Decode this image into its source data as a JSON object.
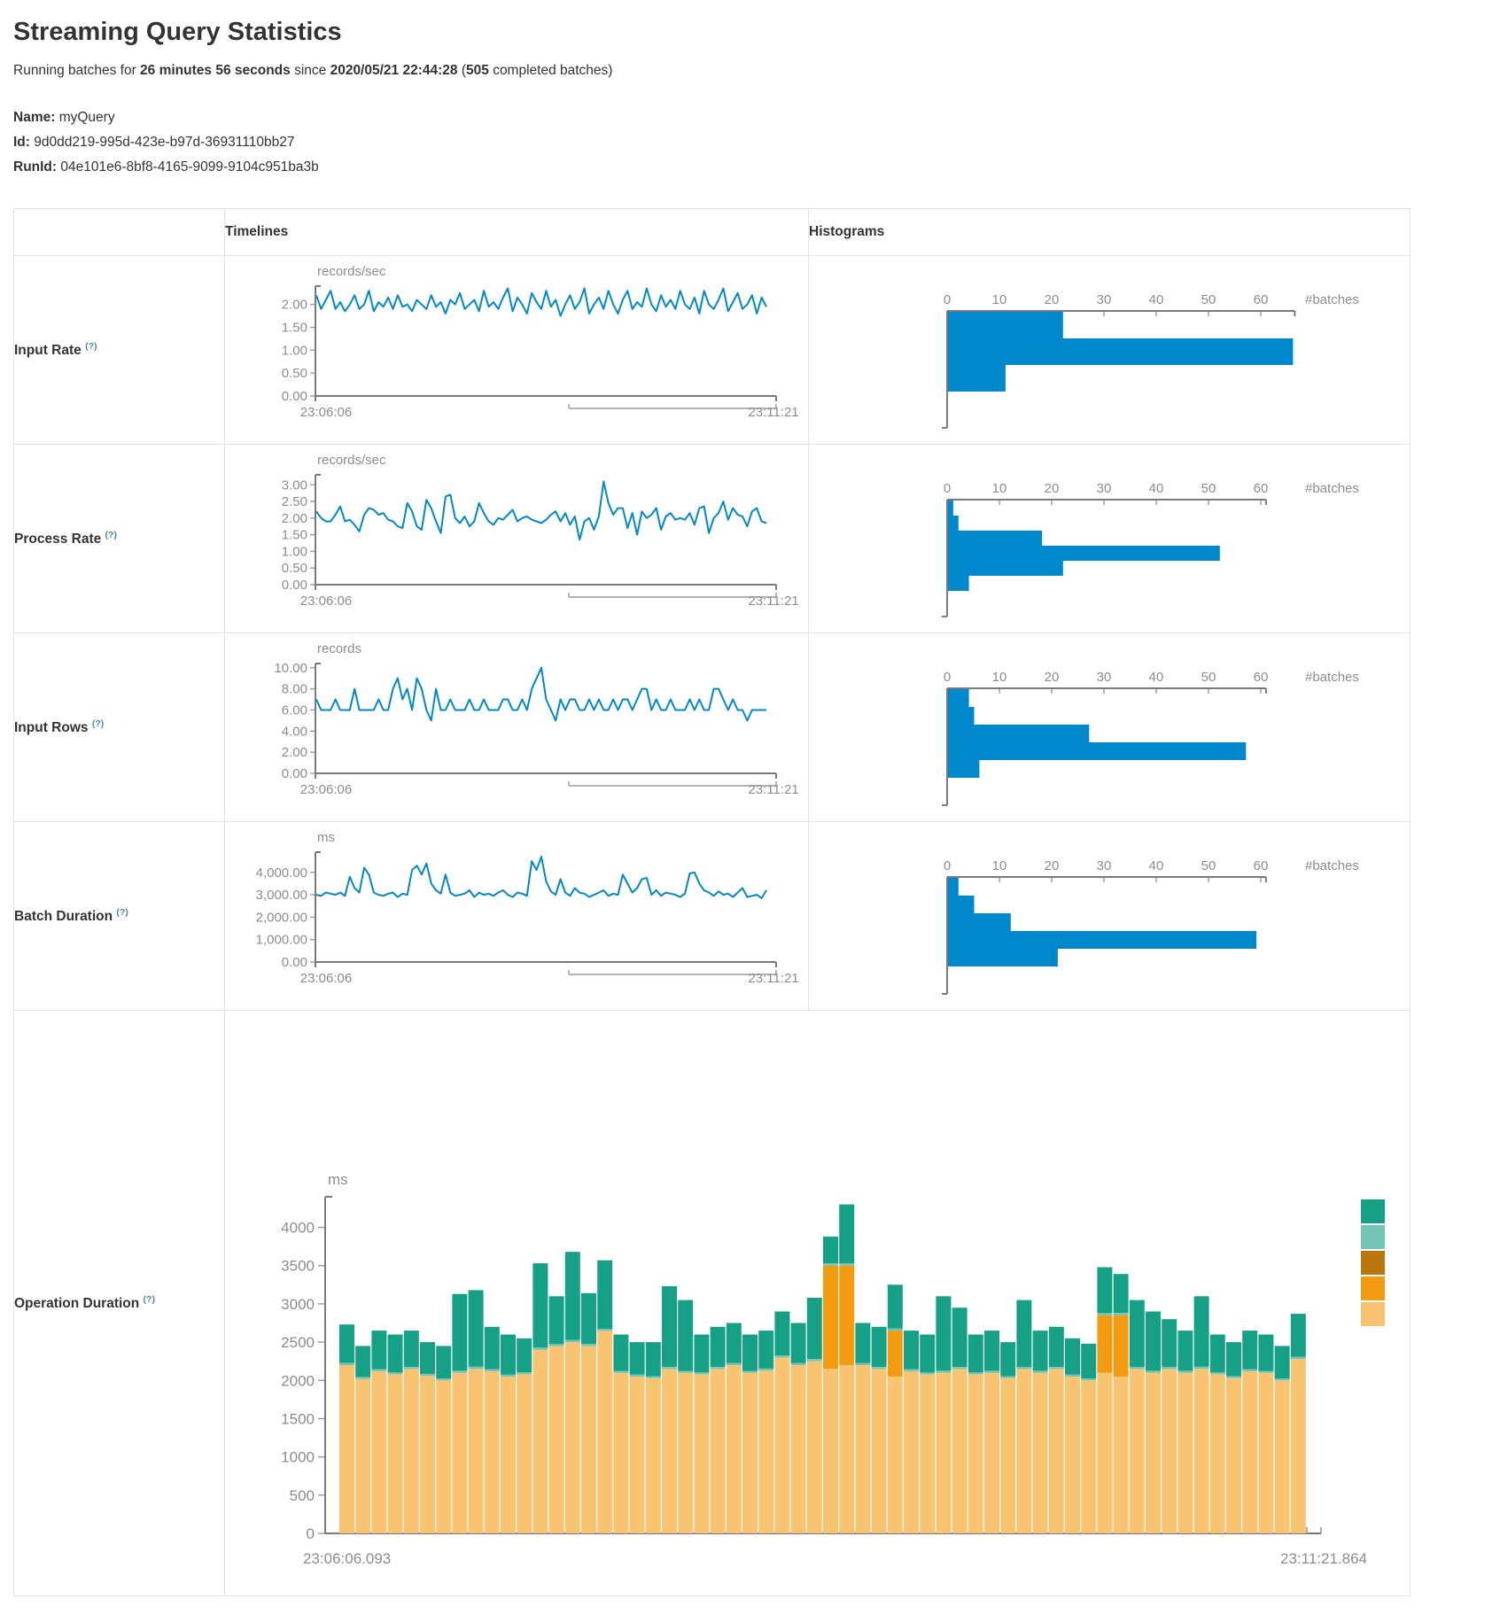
{
  "page": {
    "title": "Streaming Query Statistics"
  },
  "status_line": {
    "prefix": "Running batches for",
    "duration": "26 minutes 56 seconds",
    "middle": "since",
    "start_time": "2020/05/21 22:44:28",
    "paren_open": "(",
    "batch_count": "505",
    "suffix": "completed batches)"
  },
  "meta": {
    "name_label": "Name:",
    "name": "myQuery",
    "id_label": "Id:",
    "id": "9d0dd219-995d-423e-b97d-36931110bb27",
    "runid_label": "RunId:",
    "runid": "04e101e6-8bf8-4165-9099-9104c951ba3b"
  },
  "table": {
    "timelines_header": "Timelines",
    "histograms_header": "Histograms",
    "help_marker": "(?)",
    "rows": [
      {
        "label": "Input Rate"
      },
      {
        "label": "Process Rate"
      },
      {
        "label": "Input Rows"
      },
      {
        "label": "Batch Duration"
      },
      {
        "label": "Operation Duration"
      }
    ]
  },
  "colors": {
    "line_blue": "#0088cc",
    "bar_blue": "#0088cc",
    "axis": "#7a7a7a",
    "tick_text": "#8c8c8c",
    "legend": [
      "#16A085",
      "#73C6B6",
      "#B9770E",
      "#F39C12",
      "#F8C471"
    ]
  },
  "chart_data": [
    {
      "id": "input-rate-timeline",
      "type": "line",
      "title": "Input Rate",
      "unit": "records/sec",
      "x_start": "23:06:06",
      "x_end": "23:11:21",
      "ymax": 2.4,
      "yticks": [
        0,
        0.5,
        1,
        1.5,
        2
      ],
      "ytick_labels": [
        "0.00",
        "0.50",
        "1.00",
        "1.50",
        "2.00"
      ],
      "values": [
        2.2,
        1.9,
        2.1,
        2.3,
        1.9,
        2.05,
        1.85,
        2.0,
        2.2,
        1.9,
        2.0,
        2.3,
        1.85,
        2.05,
        1.95,
        2.15,
        1.9,
        2.2,
        1.95,
        2.0,
        1.85,
        2.1,
        2.0,
        1.9,
        2.2,
        1.95,
        2.05,
        1.8,
        2.1,
        2.0,
        2.25,
        1.9,
        2.0,
        2.1,
        1.85,
        2.3,
        1.95,
        2.05,
        1.9,
        2.15,
        2.35,
        1.85,
        2.15,
        2.0,
        1.8,
        2.25,
        2.05,
        1.9,
        2.3,
        1.95,
        2.1,
        1.75,
        2.0,
        2.2,
        1.9,
        2.05,
        2.35,
        1.8,
        2.0,
        2.15,
        1.9,
        2.3,
        2.0,
        1.8,
        2.1,
        2.3,
        1.9,
        2.05,
        1.95,
        2.35,
        2.0,
        1.85,
        2.2,
        1.95,
        2.1,
        1.9,
        2.3,
        2.0,
        1.9,
        2.15,
        1.8,
        2.3,
        2.0,
        1.9,
        2.1,
        2.35,
        1.85,
        2.05,
        2.25,
        1.9,
        2.0,
        2.2,
        1.8,
        2.15,
        1.95
      ]
    },
    {
      "id": "input-rate-histogram",
      "type": "bar",
      "title": "Input Rate histogram",
      "orientation": "horizontal",
      "xlabel": "#batches",
      "xticks": [
        0,
        10,
        20,
        30,
        40,
        50,
        60
      ],
      "bars": [
        22,
        66,
        11
      ],
      "axis_max": 66.5
    },
    {
      "id": "process-rate-timeline",
      "type": "line",
      "title": "Process Rate",
      "unit": "records/sec",
      "x_start": "23:06:06",
      "x_end": "23:11:21",
      "ymax": 3.3,
      "yticks": [
        0,
        0.5,
        1,
        1.5,
        2,
        2.5,
        3
      ],
      "ytick_labels": [
        "0.00",
        "0.50",
        "1.00",
        "1.50",
        "2.00",
        "2.50",
        "3.00"
      ],
      "values": [
        2.2,
        2.0,
        1.9,
        1.9,
        2.1,
        2.35,
        1.9,
        1.95,
        1.8,
        1.6,
        2.1,
        2.3,
        2.25,
        2.1,
        2.15,
        1.95,
        1.9,
        1.75,
        1.7,
        2.45,
        2.2,
        1.75,
        1.65,
        2.55,
        2.3,
        1.9,
        1.55,
        2.65,
        2.7,
        2.0,
        1.85,
        2.05,
        1.75,
        1.9,
        2.45,
        2.15,
        1.9,
        1.8,
        2.0,
        1.95,
        2.1,
        2.25,
        1.9,
        2.0,
        2.05,
        1.95,
        1.9,
        1.85,
        1.95,
        2.1,
        2.2,
        1.9,
        2.15,
        1.8,
        2.05,
        1.35,
        1.9,
        2.0,
        1.65,
        2.05,
        3.1,
        2.45,
        2.1,
        2.3,
        2.3,
        1.7,
        2.15,
        1.5,
        2.2,
        2.0,
        2.1,
        2.3,
        1.65,
        2.05,
        2.15,
        1.95,
        2.0,
        1.95,
        2.15,
        1.8,
        2.3,
        2.35,
        1.55,
        2.0,
        2.15,
        2.5,
        1.95,
        2.3,
        2.1,
        2.05,
        1.75,
        2.2,
        2.3,
        1.9,
        1.85
      ]
    },
    {
      "id": "process-rate-histogram",
      "type": "bar",
      "title": "Process Rate histogram",
      "orientation": "horizontal",
      "xlabel": "#batches",
      "xticks": [
        0,
        10,
        20,
        30,
        40,
        50,
        60
      ],
      "bars": [
        1,
        2,
        18,
        52,
        22,
        4
      ],
      "axis_max": 61
    },
    {
      "id": "input-rows-timeline",
      "type": "line",
      "title": "Input Rows",
      "unit": "records",
      "x_start": "23:06:06",
      "x_end": "23:11:21",
      "ymax": 10.4,
      "yticks": [
        0,
        2,
        4,
        6,
        8,
        10
      ],
      "ytick_labels": [
        "0.00",
        "2.00",
        "4.00",
        "6.00",
        "8.00",
        "10.00"
      ],
      "values": [
        7,
        6,
        6,
        6,
        7,
        6,
        6,
        6,
        8,
        6,
        6,
        6,
        6,
        7,
        6,
        6,
        8,
        9,
        7,
        8,
        6,
        9,
        8,
        6,
        5,
        8,
        6,
        6,
        7,
        6,
        6,
        6,
        7,
        6,
        6,
        7,
        6,
        6,
        6,
        7,
        7,
        6,
        6,
        7,
        6,
        8,
        9,
        10,
        7,
        6,
        5,
        7,
        6,
        7,
        7,
        6,
        6,
        7,
        6,
        7,
        6,
        6,
        7,
        6,
        7,
        7,
        6,
        7,
        8,
        8,
        6,
        7,
        6,
        6,
        7,
        6,
        6,
        6,
        7,
        6,
        7,
        6,
        6,
        8,
        8,
        7,
        6,
        7,
        6,
        6,
        5,
        6,
        6,
        6,
        6
      ]
    },
    {
      "id": "input-rows-histogram",
      "type": "bar",
      "title": "Input Rows histogram",
      "orientation": "horizontal",
      "xlabel": "#batches",
      "xticks": [
        0,
        10,
        20,
        30,
        40,
        50,
        60
      ],
      "bars": [
        4,
        5,
        27,
        57,
        6
      ],
      "axis_max": 61
    },
    {
      "id": "batch-duration-timeline",
      "type": "line",
      "title": "Batch Duration",
      "unit": "ms",
      "x_start": "23:06:06",
      "x_end": "23:11:21",
      "ymax": 4900,
      "yticks": [
        0,
        1000,
        2000,
        3000,
        4000
      ],
      "ytick_labels": [
        "0.00",
        "1,000.00",
        "2,000.00",
        "3,000.00",
        "4,000.00"
      ],
      "values": [
        3000,
        2950,
        3100,
        3050,
        3000,
        3100,
        2950,
        3800,
        3300,
        3100,
        4200,
        3900,
        3100,
        3000,
        2950,
        3050,
        3100,
        2900,
        3050,
        3000,
        4100,
        4300,
        3900,
        4400,
        3500,
        3200,
        3050,
        3900,
        3100,
        2950,
        3000,
        3050,
        3200,
        2900,
        3100,
        3000,
        3050,
        2950,
        3100,
        3200,
        3000,
        2900,
        3100,
        3050,
        2950,
        4500,
        4100,
        4700,
        3600,
        3150,
        3000,
        3700,
        3100,
        2950,
        3300,
        3100,
        3050,
        2900,
        3000,
        3100,
        3200,
        2950,
        3050,
        3000,
        3900,
        3500,
        3100,
        3300,
        3700,
        3750,
        3000,
        3200,
        2950,
        3100,
        3050,
        3000,
        2900,
        3050,
        3950,
        4000,
        3500,
        3200,
        3100,
        2950,
        3150,
        3000,
        3050,
        2900,
        3100,
        3300,
        2900,
        2950,
        3000,
        2850,
        3200
      ]
    },
    {
      "id": "batch-duration-histogram",
      "type": "bar",
      "title": "Batch Duration histogram",
      "orientation": "horizontal",
      "xlabel": "#batches",
      "xticks": [
        0,
        10,
        20,
        30,
        40,
        50,
        60
      ],
      "bars": [
        2,
        5,
        12,
        59,
        21
      ],
      "axis_max": 61
    },
    {
      "id": "operation-duration",
      "type": "stacked-bar",
      "title": "Operation Duration",
      "unit": "ms",
      "x_start": "23:06:06.093",
      "x_end": "23:11:21.864",
      "ymax": 4400,
      "yticks": [
        0,
        500,
        1000,
        1500,
        2000,
        2500,
        3000,
        3500,
        4000
      ],
      "ytick_labels": [
        "0",
        "500",
        "1000",
        "1500",
        "2000",
        "2500",
        "3000",
        "3500",
        "4000"
      ],
      "segment_colors": [
        "#F8C471",
        "#F39C12",
        "#B9770E",
        "#73C6B6",
        "#16A085"
      ],
      "legend_colors": [
        "#16A085",
        "#73C6B6",
        "#B9770E",
        "#F39C12",
        "#F8C471"
      ],
      "bars": [
        [
          2200,
          0,
          0,
          30,
          500
        ],
        [
          2020,
          0,
          0,
          25,
          405
        ],
        [
          2120,
          0,
          0,
          25,
          505
        ],
        [
          2080,
          0,
          0,
          25,
          495
        ],
        [
          2150,
          0,
          0,
          25,
          475
        ],
        [
          2060,
          0,
          0,
          25,
          415
        ],
        [
          2000,
          0,
          0,
          25,
          425
        ],
        [
          2100,
          0,
          0,
          30,
          1000
        ],
        [
          2150,
          0,
          0,
          30,
          1000
        ],
        [
          2120,
          0,
          0,
          25,
          555
        ],
        [
          2050,
          0,
          0,
          25,
          525
        ],
        [
          2080,
          0,
          0,
          25,
          445
        ],
        [
          2400,
          0,
          0,
          30,
          1100
        ],
        [
          2450,
          0,
          0,
          25,
          625
        ],
        [
          2500,
          0,
          0,
          30,
          1150
        ],
        [
          2450,
          0,
          0,
          25,
          665
        ],
        [
          2650,
          0,
          0,
          25,
          895
        ],
        [
          2100,
          0,
          0,
          25,
          475
        ],
        [
          2050,
          0,
          0,
          25,
          425
        ],
        [
          2030,
          0,
          0,
          25,
          445
        ],
        [
          2150,
          0,
          0,
          25,
          1055
        ],
        [
          2100,
          0,
          0,
          25,
          925
        ],
        [
          2080,
          0,
          0,
          25,
          495
        ],
        [
          2150,
          0,
          0,
          25,
          525
        ],
        [
          2200,
          0,
          0,
          25,
          525
        ],
        [
          2100,
          0,
          0,
          25,
          475
        ],
        [
          2130,
          0,
          0,
          25,
          495
        ],
        [
          2300,
          0,
          0,
          25,
          575
        ],
        [
          2200,
          0,
          0,
          25,
          525
        ],
        [
          2250,
          0,
          0,
          30,
          800
        ],
        [
          2150,
          1350,
          0,
          30,
          350
        ],
        [
          2200,
          1300,
          0,
          30,
          770
        ],
        [
          2200,
          0,
          0,
          25,
          525
        ],
        [
          2150,
          0,
          0,
          25,
          525
        ],
        [
          2050,
          600,
          0,
          30,
          570
        ],
        [
          2120,
          0,
          0,
          25,
          505
        ],
        [
          2080,
          0,
          0,
          25,
          495
        ],
        [
          2100,
          0,
          0,
          30,
          970
        ],
        [
          2150,
          0,
          0,
          25,
          775
        ],
        [
          2080,
          0,
          0,
          25,
          495
        ],
        [
          2100,
          0,
          0,
          25,
          525
        ],
        [
          2030,
          0,
          0,
          25,
          445
        ],
        [
          2150,
          0,
          0,
          25,
          875
        ],
        [
          2100,
          0,
          0,
          25,
          525
        ],
        [
          2150,
          0,
          0,
          25,
          525
        ],
        [
          2050,
          0,
          0,
          25,
          475
        ],
        [
          2000,
          0,
          0,
          25,
          455
        ],
        [
          2100,
          750,
          0,
          30,
          600
        ],
        [
          2050,
          800,
          0,
          30,
          510
        ],
        [
          2150,
          0,
          0,
          25,
          875
        ],
        [
          2100,
          0,
          0,
          25,
          775
        ],
        [
          2150,
          0,
          0,
          25,
          625
        ],
        [
          2100,
          0,
          0,
          25,
          525
        ],
        [
          2150,
          0,
          0,
          30,
          920
        ],
        [
          2080,
          0,
          0,
          25,
          495
        ],
        [
          2030,
          0,
          0,
          25,
          445
        ],
        [
          2120,
          0,
          0,
          25,
          505
        ],
        [
          2100,
          0,
          0,
          25,
          475
        ],
        [
          2000,
          0,
          0,
          25,
          425
        ],
        [
          2280,
          0,
          0,
          30,
          560
        ]
      ]
    }
  ]
}
